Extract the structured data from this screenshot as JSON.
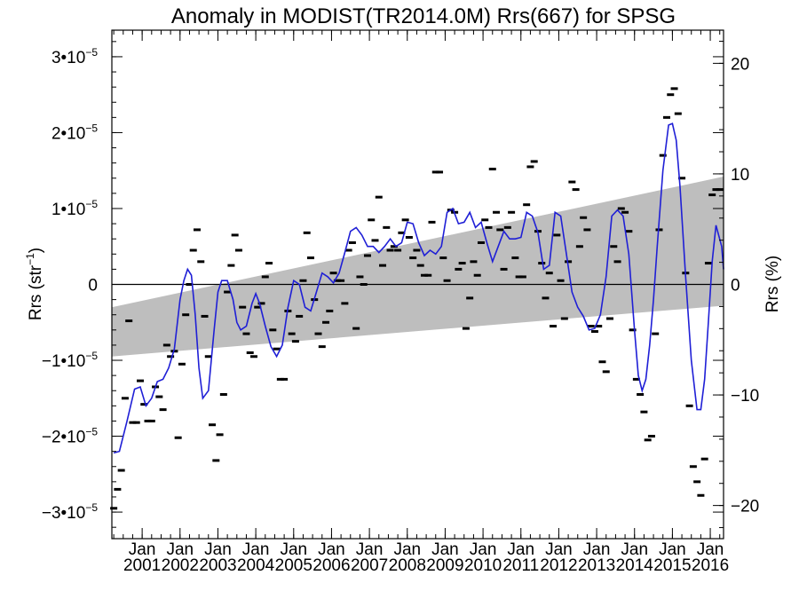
{
  "chart_data": {
    "type": "line",
    "title": "Anomaly in MODIST(TR2014.0M) Rrs(667) for SPSG",
    "ylabel_left": "Rrs (str",
    "ylabel_left_sup": "−1",
    "ylabel_left_close": ")",
    "ylabel_right": "Rrs (%)",
    "x_tick_month": "Jan",
    "x_tick_years": [
      "2001",
      "2002",
      "2003",
      "2004",
      "2005",
      "2006",
      "2007",
      "2008",
      "2009",
      "2010",
      "2011",
      "2012",
      "2013",
      "2014",
      "2015",
      "2016"
    ],
    "xlim": [
      2000.2,
      2016.35
    ],
    "ylim_left": [
      -3.35e-05,
      3.35e-05
    ],
    "ylim_right": [
      -23,
      23
    ],
    "y_ticks_left": [
      {
        "value": 3e-05,
        "mantissa": "3•10",
        "exp": "−5"
      },
      {
        "value": 2e-05,
        "mantissa": "2•10",
        "exp": "−5"
      },
      {
        "value": 1e-05,
        "mantissa": "1•10",
        "exp": "−5"
      },
      {
        "value": 0,
        "mantissa": "0",
        "exp": ""
      },
      {
        "value": -1e-05,
        "mantissa": "−1•10",
        "exp": "−5"
      },
      {
        "value": -2e-05,
        "mantissa": "−2•10",
        "exp": "−5"
      },
      {
        "value": -3e-05,
        "mantissa": "−3•10",
        "exp": "−5"
      }
    ],
    "y_ticks_right": [
      {
        "value": 20,
        "label": "20"
      },
      {
        "value": 10,
        "label": "10"
      },
      {
        "value": 0,
        "label": "0"
      },
      {
        "value": -10,
        "label": "−10"
      },
      {
        "value": -20,
        "label": "−20"
      }
    ],
    "zero_line": 0,
    "trend_band": {
      "x": [
        2000.2,
        2016.35
      ],
      "upper": [
        -3e-06,
        1.42e-05
      ],
      "lower": [
        -9.5e-06,
        -2.8e-06
      ],
      "color": "#bebebe"
    },
    "smoothed_series": {
      "color": "#1f1fd6",
      "x": [
        2000.25,
        2000.4,
        2000.6,
        2000.8,
        2000.95,
        2001.1,
        2001.25,
        2001.4,
        2001.55,
        2001.7,
        2001.85,
        2002.0,
        2002.1,
        2002.2,
        2002.3,
        2002.4,
        2002.5,
        2002.6,
        2002.75,
        2002.9,
        2003.0,
        2003.1,
        2003.25,
        2003.4,
        2003.5,
        2003.6,
        2003.75,
        2003.9,
        2004.0,
        2004.1,
        2004.25,
        2004.4,
        2004.55,
        2004.7,
        2004.85,
        2005.0,
        2005.15,
        2005.3,
        2005.45,
        2005.6,
        2005.75,
        2005.9,
        2006.05,
        2006.2,
        2006.35,
        2006.5,
        2006.65,
        2006.8,
        2006.95,
        2007.1,
        2007.25,
        2007.4,
        2007.55,
        2007.7,
        2007.85,
        2008.0,
        2008.15,
        2008.3,
        2008.45,
        2008.6,
        2008.75,
        2008.9,
        2009.05,
        2009.2,
        2009.35,
        2009.5,
        2009.65,
        2009.8,
        2009.95,
        2010.1,
        2010.25,
        2010.4,
        2010.55,
        2010.7,
        2010.85,
        2011.0,
        2011.15,
        2011.3,
        2011.45,
        2011.6,
        2011.75,
        2011.9,
        2012.05,
        2012.2,
        2012.35,
        2012.5,
        2012.65,
        2012.8,
        2012.95,
        2013.1,
        2013.25,
        2013.4,
        2013.55,
        2013.7,
        2013.85,
        2014.0,
        2014.1,
        2014.2,
        2014.3,
        2014.4,
        2014.5,
        2014.6,
        2014.75,
        2014.9,
        2015.0,
        2015.1,
        2015.2,
        2015.35,
        2015.5,
        2015.65,
        2015.75,
        2015.85,
        2015.95,
        2016.05,
        2016.15,
        2016.3,
        2016.35
      ],
      "y": [
        -2.22,
        -2.2,
        -1.8,
        -1.38,
        -1.35,
        -1.6,
        -1.5,
        -1.28,
        -1.25,
        -1.1,
        -0.85,
        -0.2,
        0.05,
        0.2,
        0.12,
        -0.4,
        -1.1,
        -1.5,
        -1.4,
        -0.6,
        -0.1,
        0.05,
        0.05,
        -0.2,
        -0.5,
        -0.6,
        -0.55,
        -0.25,
        -0.12,
        -0.25,
        -0.55,
        -0.82,
        -0.95,
        -0.8,
        -0.3,
        0.05,
        0.0,
        -0.3,
        -0.35,
        -0.1,
        0.15,
        0.1,
        0.02,
        0.15,
        0.42,
        0.7,
        0.75,
        0.65,
        0.5,
        0.5,
        0.42,
        0.5,
        0.6,
        0.5,
        0.55,
        0.82,
        0.8,
        0.55,
        0.38,
        0.45,
        0.4,
        0.5,
        0.95,
        1.0,
        0.8,
        0.82,
        0.95,
        0.75,
        0.82,
        0.55,
        0.3,
        0.5,
        0.7,
        0.6,
        0.6,
        0.62,
        0.95,
        0.9,
        0.68,
        0.2,
        0.25,
        0.95,
        0.9,
        0.4,
        -0.1,
        -0.3,
        -0.42,
        -0.6,
        -0.58,
        -0.4,
        0.1,
        0.9,
        0.98,
        0.9,
        0.4,
        -0.6,
        -1.2,
        -1.4,
        -1.25,
        -0.8,
        -0.2,
        0.5,
        1.5,
        2.1,
        2.12,
        1.9,
        1.3,
        0.1,
        -1.0,
        -1.65,
        -1.65,
        -1.25,
        -0.5,
        0.3,
        0.78,
        0.5,
        0.2
      ]
    },
    "monthly_points": {
      "x": [
        2000.25,
        2000.35,
        2000.45,
        2000.55,
        2000.65,
        2000.75,
        2000.85,
        2000.95,
        2001.05,
        2001.15,
        2001.25,
        2001.35,
        2001.45,
        2001.55,
        2001.65,
        2001.75,
        2001.85,
        2001.95,
        2002.05,
        2002.15,
        2002.25,
        2002.35,
        2002.45,
        2002.55,
        2002.65,
        2002.75,
        2002.85,
        2002.95,
        2003.05,
        2003.15,
        2003.25,
        2003.35,
        2003.45,
        2003.55,
        2003.65,
        2003.75,
        2003.85,
        2003.95,
        2004.05,
        2004.15,
        2004.25,
        2004.35,
        2004.45,
        2004.55,
        2004.65,
        2004.75,
        2004.85,
        2004.95,
        2005.05,
        2005.15,
        2005.25,
        2005.35,
        2005.45,
        2005.55,
        2005.65,
        2005.75,
        2005.85,
        2005.95,
        2006.05,
        2006.15,
        2006.25,
        2006.35,
        2006.45,
        2006.55,
        2006.65,
        2006.75,
        2006.85,
        2006.95,
        2007.05,
        2007.15,
        2007.25,
        2007.35,
        2007.45,
        2007.55,
        2007.65,
        2007.75,
        2007.85,
        2007.95,
        2008.05,
        2008.15,
        2008.25,
        2008.35,
        2008.45,
        2008.55,
        2008.65,
        2008.75,
        2008.85,
        2008.95,
        2009.05,
        2009.15,
        2009.25,
        2009.35,
        2009.45,
        2009.55,
        2009.65,
        2009.75,
        2009.85,
        2009.95,
        2010.05,
        2010.15,
        2010.25,
        2010.35,
        2010.45,
        2010.55,
        2010.65,
        2010.75,
        2010.85,
        2010.95,
        2011.05,
        2011.15,
        2011.25,
        2011.35,
        2011.45,
        2011.55,
        2011.65,
        2011.75,
        2011.85,
        2011.95,
        2012.05,
        2012.15,
        2012.25,
        2012.35,
        2012.45,
        2012.55,
        2012.65,
        2012.75,
        2012.85,
        2012.95,
        2013.05,
        2013.15,
        2013.25,
        2013.35,
        2013.45,
        2013.55,
        2013.65,
        2013.75,
        2013.85,
        2013.95,
        2014.05,
        2014.15,
        2014.25,
        2014.35,
        2014.45,
        2014.55,
        2014.65,
        2014.75,
        2014.85,
        2014.95,
        2015.05,
        2015.15,
        2015.25,
        2015.35,
        2015.45,
        2015.55,
        2015.65,
        2015.75,
        2015.85,
        2015.95,
        2016.05,
        2016.15,
        2016.25
      ],
      "y": [
        -2.95,
        -2.7,
        -2.45,
        -1.5,
        -0.48,
        -1.82,
        -1.82,
        -1.27,
        -1.58,
        -1.8,
        -1.8,
        -1.35,
        -1.48,
        -1.65,
        -0.8,
        -0.95,
        -0.88,
        -2.02,
        -1.05,
        -0.4,
        0.0,
        0.45,
        0.72,
        0.3,
        -0.42,
        -0.95,
        -1.85,
        -2.32,
        -1.98,
        -1.45,
        -0.1,
        0.25,
        0.65,
        0.45,
        -0.3,
        -0.65,
        -0.9,
        -0.95,
        -0.3,
        -0.25,
        0.1,
        0.28,
        -0.6,
        -0.85,
        -1.25,
        -1.25,
        -0.35,
        -0.65,
        -0.75,
        -0.42,
        0.05,
        0.68,
        0.35,
        -0.2,
        -0.65,
        -0.82,
        -0.5,
        -0.35,
        0.15,
        0.05,
        0.05,
        -0.25,
        0.45,
        0.55,
        -0.58,
        0.1,
        0.0,
        0.38,
        0.85,
        0.58,
        1.15,
        0.25,
        0.75,
        0.45,
        0.5,
        0.45,
        0.68,
        0.85,
        0.62,
        0.35,
        0.45,
        0.25,
        0.12,
        0.12,
        0.82,
        1.48,
        1.48,
        0.35,
        0.05,
        0.98,
        0.95,
        0.2,
        0.28,
        -0.58,
        -0.18,
        0.3,
        0.12,
        0.55,
        0.85,
        0.75,
        1.52,
        0.95,
        0.72,
        0.2,
        0.75,
        0.95,
        0.35,
        0.1,
        0.1,
        1.05,
        1.55,
        1.62,
        0.7,
        0.28,
        -0.18,
        0.15,
        -0.55,
        0.65,
        0.05,
        -0.45,
        0.3,
        1.35,
        1.25,
        0.5,
        0.88,
        0.72,
        -0.55,
        -0.62,
        -0.55,
        -1.02,
        -1.15,
        -0.45,
        0.5,
        0.3,
        1.0,
        0.95,
        0.7,
        -0.6,
        -1.25,
        -1.45,
        -1.68,
        -2.05,
        -2.0,
        -0.65,
        0.72,
        1.7,
        2.2,
        2.5,
        2.58,
        2.25,
        1.4,
        0.15,
        -1.6,
        -2.4,
        -2.6,
        -2.78,
        -2.3,
        0.28,
        1.18,
        1.25,
        1.25
      ],
      "y_scale": 1e-05
    }
  }
}
